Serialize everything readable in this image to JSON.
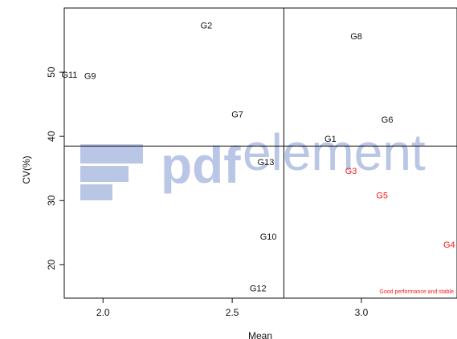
{
  "chart_data": {
    "type": "scatter",
    "title": "",
    "xlabel": "Mean",
    "ylabel": "CV(%)",
    "xlim": [
      1.85,
      3.37
    ],
    "ylim": [
      14.8,
      60.0
    ],
    "xticks": [
      "2.0",
      "2.5",
      "3.0"
    ],
    "yticks": [
      "20",
      "30",
      "40",
      "50"
    ],
    "grid": false,
    "reference_lines": {
      "mean_x": 2.7,
      "mean_cv": 38.5
    },
    "annotation": "Good performance and stable",
    "points": [
      {
        "label": "G1",
        "x": 2.88,
        "y": 39.5,
        "highlight": false
      },
      {
        "label": "G2",
        "x": 2.4,
        "y": 57.2,
        "highlight": false
      },
      {
        "label": "G3",
        "x": 2.96,
        "y": 34.5,
        "highlight": true
      },
      {
        "label": "G4",
        "x": 3.34,
        "y": 23.0,
        "highlight": true
      },
      {
        "label": "G5",
        "x": 3.08,
        "y": 30.7,
        "highlight": true
      },
      {
        "label": "G6",
        "x": 3.1,
        "y": 42.5,
        "highlight": false
      },
      {
        "label": "G7",
        "x": 2.52,
        "y": 43.3,
        "highlight": false
      },
      {
        "label": "G8",
        "x": 2.98,
        "y": 55.5,
        "highlight": false
      },
      {
        "label": "G9",
        "x": 1.95,
        "y": 49.3,
        "highlight": false
      },
      {
        "label": "G10",
        "x": 2.64,
        "y": 24.3,
        "highlight": false
      },
      {
        "label": "G11",
        "x": 1.87,
        "y": 49.5,
        "highlight": false
      },
      {
        "label": "G12",
        "x": 2.6,
        "y": 16.2,
        "highlight": false
      },
      {
        "label": "G13",
        "x": 2.63,
        "y": 35.9,
        "highlight": false
      }
    ]
  },
  "watermark": {
    "text_pdf": "pdf",
    "text_element": "element"
  },
  "colors": {
    "axis": "#111111",
    "normal": "#111111",
    "highlight": "#ff1a1a",
    "watermark": "#b9c6e6"
  }
}
